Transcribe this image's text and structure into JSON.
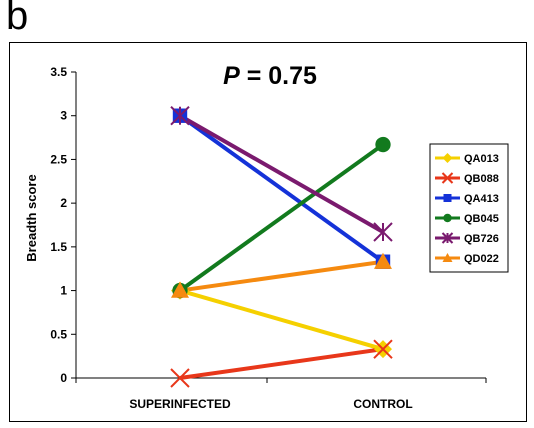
{
  "panel_label": "b",
  "annotation": {
    "italic": "P",
    "rest": " = 0.75"
  },
  "colors": {
    "QA013": "#f5d000",
    "QB088": "#e8371a",
    "QA413": "#1432d8",
    "QB045": "#127a1e",
    "QB726": "#7a1a6e",
    "QD022": "#f58a10"
  },
  "chart_data": {
    "type": "line",
    "categories": [
      "SUPERINFECTED",
      "CONTROL"
    ],
    "ylabel": "Breadth score",
    "xlabel": "",
    "ylim": [
      0,
      3.5
    ],
    "yticks": [
      "0",
      "0.5",
      "1",
      "1.5",
      "2",
      "2.5",
      "3",
      "3.5"
    ],
    "legend_position": "right",
    "series": [
      {
        "name": "QA013",
        "values": [
          1,
          0.33
        ],
        "marker": "diamond"
      },
      {
        "name": "QB088",
        "values": [
          0,
          0.33
        ],
        "marker": "x"
      },
      {
        "name": "QA413",
        "values": [
          3,
          1.33
        ],
        "marker": "square"
      },
      {
        "name": "QB045",
        "values": [
          1,
          2.67
        ],
        "marker": "circle"
      },
      {
        "name": "QB726",
        "values": [
          3,
          1.67
        ],
        "marker": "star"
      },
      {
        "name": "QD022",
        "values": [
          1,
          1.33
        ],
        "marker": "triangle"
      }
    ]
  }
}
